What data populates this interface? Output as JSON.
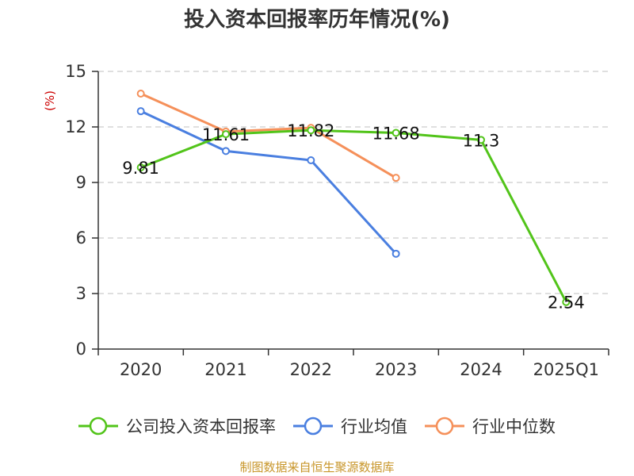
{
  "chart_data": {
    "type": "line",
    "title": "投入资本回报率历年情况(%)",
    "ylabel": "(%)",
    "xlabel": "",
    "categories": [
      "2020",
      "2021",
      "2022",
      "2023",
      "2024",
      "2025Q1"
    ],
    "ylim": [
      0,
      15
    ],
    "yticks": [
      0,
      3,
      6,
      9,
      12,
      15
    ],
    "grid": true,
    "legend_position": "bottom",
    "series": [
      {
        "name": "公司投入资本回报率",
        "color": "#52c41a",
        "values": [
          9.81,
          11.61,
          11.82,
          11.68,
          11.3,
          2.54
        ],
        "labels": [
          "9.81",
          "11.61",
          "11.82",
          "11.68",
          "11.3",
          "2.54"
        ]
      },
      {
        "name": "行业均值",
        "color": "#4a7fe0",
        "values": [
          12.85,
          10.7,
          10.2,
          5.15,
          null,
          null
        ]
      },
      {
        "name": "行业中位数",
        "color": "#f5905a",
        "values": [
          13.8,
          11.75,
          11.95,
          9.25,
          null,
          null
        ]
      }
    ],
    "source": "制图数据来自恒生聚源数据库",
    "colors": {
      "unit": "#cc0000",
      "source": "#c8962a",
      "axis": "#333333",
      "grid": "#cccccc"
    }
  }
}
